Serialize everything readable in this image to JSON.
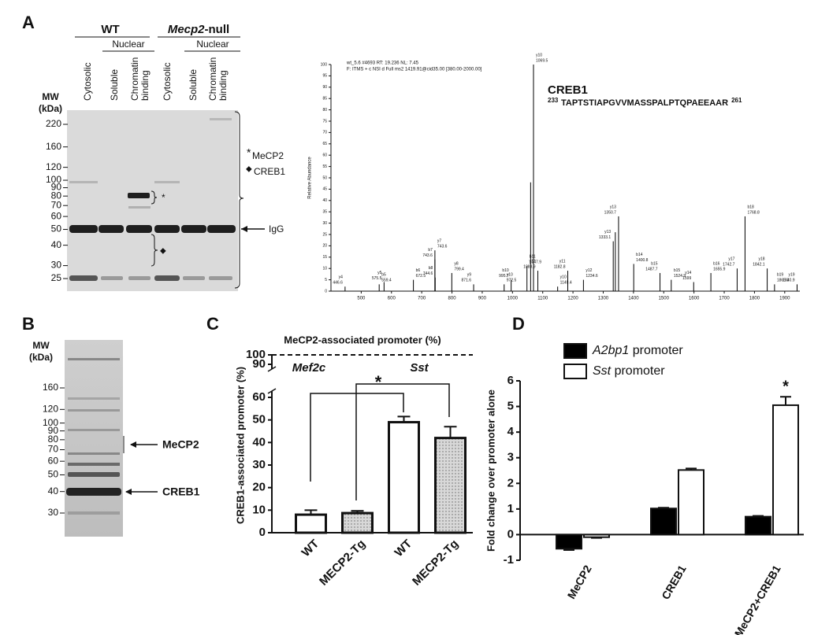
{
  "panels": {
    "a": "A",
    "b": "B",
    "c": "C",
    "d": "D"
  },
  "gel_a": {
    "groups": [
      "WT",
      "Mecp2-null"
    ],
    "nuclear": [
      "Nuclear",
      "Nuclear"
    ],
    "lanes": [
      "Cytosolic",
      "Soluble",
      "Chromatin",
      "binding",
      "Cytosolic",
      "Soluble",
      "Chromatin",
      "binding"
    ],
    "mw_title": [
      "MW",
      "(kDa)"
    ],
    "markers": [
      220,
      160,
      120,
      100,
      90,
      80,
      70,
      60,
      50,
      40,
      30,
      25
    ],
    "annotations": {
      "star": "*",
      "mecp2_star": "*",
      "mecp2": "MeCP2",
      "diamond": "◆",
      "creb1_diamond": "◆",
      "creb1": "CREB1",
      "igg": "IgG"
    }
  },
  "gel_b": {
    "mw_title": [
      "MW",
      "(kDa)"
    ],
    "markers": [
      160,
      120,
      100,
      90,
      80,
      70,
      60,
      50,
      40,
      30
    ],
    "annotations": {
      "mecp2": "MeCP2",
      "creb1": "CREB1"
    }
  },
  "chart_data": [
    {
      "type": "spectrum",
      "header": [
        "wt_5.6 #4693 RT: 19.236 NL: 7.45",
        "F: ITMS + c NSI d Full ms2 1419.91@cid35.00 [380.00-2000.00]"
      ],
      "title": "CREB1",
      "sequence": "TAPTSTIAPGVVMASSPALPTQPAEEAAR",
      "sequence_start": 233,
      "sequence_end": 261,
      "ylabel": "Relative Abundance",
      "x": [
        446.6,
        559.4,
        575.5,
        672.5,
        743.6,
        743.6,
        744.6,
        799.4,
        871.6,
        972.5,
        995.7,
        1047.9,
        1060,
        1069.5,
        1083.9,
        1149.4,
        1182.8,
        1234.6,
        1333.1,
        1340,
        1350.7,
        1400.8,
        1487.7,
        1524.9,
        1599.0,
        1655.9,
        1742.7,
        1768.8,
        1842.1,
        1866.3,
        1940.9
      ],
      "values": [
        2,
        3,
        4,
        5,
        14,
        18,
        6,
        8,
        3,
        3,
        5,
        11,
        48,
        100,
        9,
        2,
        9,
        5,
        22,
        26,
        33,
        12,
        8,
        5,
        4,
        8,
        10,
        33,
        10,
        3,
        3
      ],
      "ions": [
        "y4",
        "b5",
        "y5",
        "b6",
        "b7",
        "y7",
        "b8",
        "y8",
        "y9",
        "y10",
        "b10",
        "b11",
        null,
        "y10",
        "y12",
        "y10",
        "y11",
        "y12",
        "y13",
        null,
        "y13",
        "b14",
        "b15",
        "b15",
        "y14",
        "b16",
        "y17",
        "b18",
        "y18",
        "b19",
        "y19"
      ],
      "xlim": [
        400,
        1950
      ],
      "ylim": [
        0,
        100
      ],
      "xticks": [
        500,
        600,
        700,
        800,
        900,
        1000,
        1100,
        1200,
        1300,
        1400,
        1500,
        1600,
        1700,
        1800,
        1900
      ],
      "yticks": [
        0,
        5,
        10,
        15,
        20,
        25,
        30,
        35,
        40,
        45,
        50,
        55,
        60,
        65,
        70,
        75,
        80,
        85,
        90,
        95,
        100
      ],
      "color": "#000000"
    },
    {
      "type": "bar",
      "title": "MeCP2-associated promoter (%)",
      "ylabel": "CREB1-associated promoter (%)",
      "categories": [
        "WT",
        "MECP2-Tg",
        "WT",
        "MECP2-Tg"
      ],
      "groups": [
        "Mef2c",
        "Sst"
      ],
      "values": [
        8,
        8.7,
        49,
        42
      ],
      "errors": [
        2,
        1,
        2.5,
        5
      ],
      "colors": [
        "#ffffff",
        "#d8d8d8",
        "#ffffff",
        "#d8d8d8"
      ],
      "dotted": [
        false,
        true,
        false,
        true
      ],
      "ylim": [
        0,
        60
      ],
      "yticks": [
        0,
        10,
        20,
        30,
        40,
        50,
        60
      ],
      "ylim_upper": [
        90,
        100
      ],
      "yticks_upper": [
        90,
        100
      ],
      "annotation": "*"
    },
    {
      "type": "grouped_bar",
      "ylabel": "Fold change over promoter alone",
      "categories": [
        "MeCP2",
        "CREB1",
        "MeCP2+CREB1"
      ],
      "series": [
        {
          "name": "A2bp1 promoter",
          "color": "#000000",
          "values": [
            -0.55,
            1.02,
            0.7
          ],
          "errors": [
            0.05,
            0.03,
            0.03
          ]
        },
        {
          "name": "Sst promoter",
          "color": "#ffffff",
          "values": [
            -0.1,
            2.52,
            5.05
          ],
          "errors": [
            0.03,
            0.06,
            0.33
          ]
        }
      ],
      "ylim": [
        -1,
        6
      ],
      "yticks": [
        -1,
        0,
        1,
        2,
        3,
        4,
        5,
        6
      ],
      "annotation": "*"
    }
  ]
}
